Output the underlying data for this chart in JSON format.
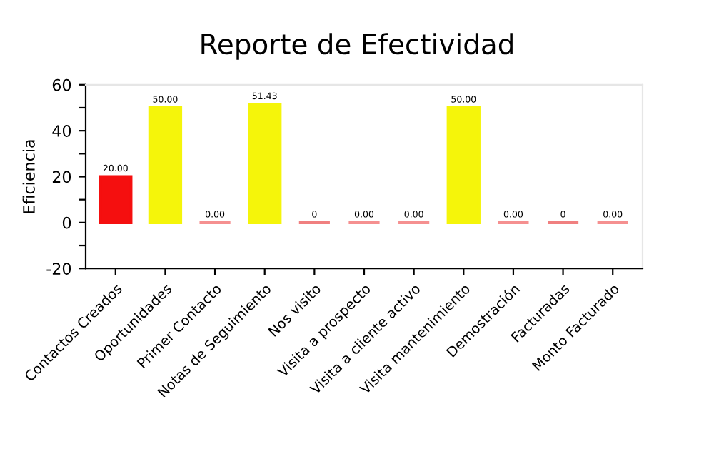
{
  "chart_data": {
    "type": "bar",
    "title": "Reporte de Efectividad",
    "ylabel": "Eficiencia",
    "categories": [
      "Contactos Creados",
      "Oportunidades",
      "Primer Contacto",
      "Notas de Seguimiento",
      "Nos visito",
      "Visita a prospecto",
      "Visita a cliente activo",
      "Visita mantenimiento",
      "Demostración",
      "Facturadas",
      "Monto Facturado"
    ],
    "values": [
      20,
      50,
      0,
      51.43,
      0,
      0,
      0,
      50,
      0,
      0,
      0
    ],
    "colors": [
      "#f50f0f",
      "#f5f50a",
      "#f59090",
      "#f5f50a",
      "#f08080",
      "#f59090",
      "#f59090",
      "#f5f50a",
      "#f59090",
      "#f08080",
      "#f59090"
    ],
    "value_labels": [
      "20.00",
      "50.00",
      "0.00",
      "51.43",
      "0",
      "0.00",
      "0.00",
      "50.00",
      "0.00",
      "0",
      "0.00"
    ],
    "ylim": [
      -20,
      60
    ],
    "yticks": [
      -20,
      {
        "value": -10,
        "label": null
      },
      0,
      {
        "value": 10,
        "label": null
      },
      20,
      {
        "value": 30,
        "label": null
      },
      40,
      {
        "value": 50,
        "label": null
      },
      60
    ],
    "grid": false,
    "legend": false
  }
}
